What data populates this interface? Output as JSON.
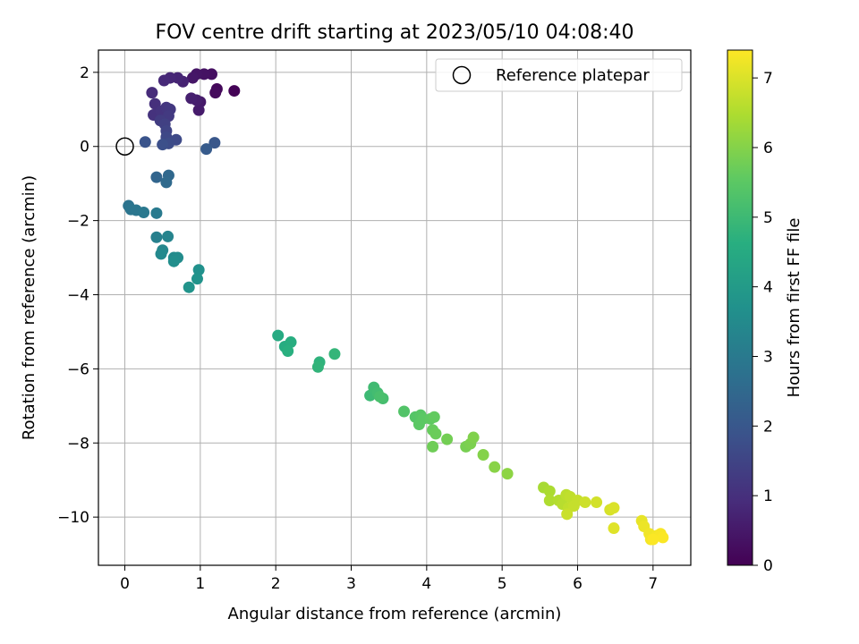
{
  "chart_data": {
    "type": "scatter",
    "title": "FOV centre drift starting at 2023/05/10 04:08:40",
    "xlabel": "Angular distance from reference (arcmin)",
    "ylabel": "Rotation from reference (arcmin)",
    "xlim": [
      -0.35,
      7.5
    ],
    "ylim": [
      -11.3,
      2.6
    ],
    "xticks": [
      0,
      1,
      2,
      3,
      4,
      5,
      6,
      7
    ],
    "yticks": [
      2,
      0,
      -2,
      -4,
      -6,
      -8,
      -10
    ],
    "grid": true,
    "legend": {
      "placement": "top-right",
      "entries": [
        "Reference platepar"
      ]
    },
    "reference": {
      "x": 0,
      "y": 0,
      "marker": "open-circle"
    },
    "colorbar": {
      "label": "Hours from first FF file",
      "range": [
        0,
        7.4
      ],
      "ticks": [
        0,
        1,
        2,
        3,
        4,
        5,
        6,
        7
      ],
      "colormap": "viridis"
    },
    "points": [
      {
        "x": 1.45,
        "y": 1.5,
        "t": 0.05
      },
      {
        "x": 1.22,
        "y": 1.55,
        "t": 0.15
      },
      {
        "x": 1.2,
        "y": 1.45,
        "t": 0.2
      },
      {
        "x": 1.15,
        "y": 1.95,
        "t": 0.3
      },
      {
        "x": 1.05,
        "y": 1.95,
        "t": 0.35
      },
      {
        "x": 0.95,
        "y": 1.95,
        "t": 0.4
      },
      {
        "x": 0.9,
        "y": 1.85,
        "t": 0.45
      },
      {
        "x": 1.0,
        "y": 1.2,
        "t": 0.5
      },
      {
        "x": 0.98,
        "y": 0.98,
        "t": 0.55
      },
      {
        "x": 0.95,
        "y": 1.25,
        "t": 0.6
      },
      {
        "x": 0.88,
        "y": 1.3,
        "t": 0.65
      },
      {
        "x": 0.77,
        "y": 1.75,
        "t": 0.7
      },
      {
        "x": 0.7,
        "y": 1.85,
        "t": 0.75
      },
      {
        "x": 0.6,
        "y": 1.85,
        "t": 0.8
      },
      {
        "x": 0.52,
        "y": 1.78,
        "t": 0.85
      },
      {
        "x": 0.36,
        "y": 1.45,
        "t": 0.9
      },
      {
        "x": 0.4,
        "y": 1.15,
        "t": 1.0
      },
      {
        "x": 0.38,
        "y": 0.85,
        "t": 1.05
      },
      {
        "x": 0.48,
        "y": 0.95,
        "t": 1.1
      },
      {
        "x": 0.55,
        "y": 1.05,
        "t": 1.15
      },
      {
        "x": 0.6,
        "y": 1.0,
        "t": 1.2
      },
      {
        "x": 0.58,
        "y": 0.82,
        "t": 1.25
      },
      {
        "x": 0.47,
        "y": 0.7,
        "t": 1.3
      },
      {
        "x": 0.53,
        "y": 0.6,
        "t": 1.4
      },
      {
        "x": 0.55,
        "y": 0.42,
        "t": 1.5
      },
      {
        "x": 0.55,
        "y": 0.25,
        "t": 1.6
      },
      {
        "x": 0.68,
        "y": 0.18,
        "t": 1.65
      },
      {
        "x": 0.58,
        "y": 0.08,
        "t": 1.7
      },
      {
        "x": 0.5,
        "y": 0.05,
        "t": 1.8
      },
      {
        "x": 0.27,
        "y": 0.12,
        "t": 1.9
      },
      {
        "x": 1.19,
        "y": 0.1,
        "t": 2.0
      },
      {
        "x": 1.08,
        "y": -0.07,
        "t": 2.1
      },
      {
        "x": 0.42,
        "y": -0.83,
        "t": 2.4
      },
      {
        "x": 0.58,
        "y": -0.78,
        "t": 2.5
      },
      {
        "x": 0.55,
        "y": -0.97,
        "t": 2.55
      },
      {
        "x": 0.05,
        "y": -1.6,
        "t": 2.8
      },
      {
        "x": 0.08,
        "y": -1.7,
        "t": 2.85
      },
      {
        "x": 0.15,
        "y": -1.72,
        "t": 2.9
      },
      {
        "x": 0.25,
        "y": -1.78,
        "t": 2.95
      },
      {
        "x": 0.42,
        "y": -1.8,
        "t": 3.0
      },
      {
        "x": 0.42,
        "y": -2.45,
        "t": 3.2
      },
      {
        "x": 0.57,
        "y": -2.43,
        "t": 3.3
      },
      {
        "x": 0.5,
        "y": -2.8,
        "t": 3.4
      },
      {
        "x": 0.48,
        "y": -2.9,
        "t": 3.45
      },
      {
        "x": 0.65,
        "y": -3.0,
        "t": 3.5
      },
      {
        "x": 0.7,
        "y": -3.0,
        "t": 3.55
      },
      {
        "x": 0.65,
        "y": -3.1,
        "t": 3.6
      },
      {
        "x": 0.98,
        "y": -3.33,
        "t": 3.7
      },
      {
        "x": 0.96,
        "y": -3.57,
        "t": 3.75
      },
      {
        "x": 0.85,
        "y": -3.8,
        "t": 3.8
      },
      {
        "x": 2.03,
        "y": -5.1,
        "t": 4.5
      },
      {
        "x": 2.12,
        "y": -5.4,
        "t": 4.55
      },
      {
        "x": 2.2,
        "y": -5.28,
        "t": 4.6
      },
      {
        "x": 2.16,
        "y": -5.52,
        "t": 4.65
      },
      {
        "x": 2.58,
        "y": -5.82,
        "t": 4.75
      },
      {
        "x": 2.56,
        "y": -5.95,
        "t": 4.8
      },
      {
        "x": 2.78,
        "y": -5.6,
        "t": 4.85
      },
      {
        "x": 3.25,
        "y": -6.72,
        "t": 5.0
      },
      {
        "x": 3.3,
        "y": -6.5,
        "t": 5.05
      },
      {
        "x": 3.35,
        "y": -6.65,
        "t": 5.1
      },
      {
        "x": 3.42,
        "y": -6.8,
        "t": 5.15
      },
      {
        "x": 3.38,
        "y": -6.75,
        "t": 5.2
      },
      {
        "x": 3.7,
        "y": -7.15,
        "t": 5.35
      },
      {
        "x": 3.85,
        "y": -7.3,
        "t": 5.4
      },
      {
        "x": 3.92,
        "y": -7.25,
        "t": 5.45
      },
      {
        "x": 3.9,
        "y": -7.5,
        "t": 5.5
      },
      {
        "x": 3.95,
        "y": -7.35,
        "t": 5.5
      },
      {
        "x": 4.05,
        "y": -7.35,
        "t": 5.55
      },
      {
        "x": 4.1,
        "y": -7.3,
        "t": 5.6
      },
      {
        "x": 4.08,
        "y": -7.65,
        "t": 5.65
      },
      {
        "x": 4.12,
        "y": -7.75,
        "t": 5.7
      },
      {
        "x": 4.08,
        "y": -8.1,
        "t": 5.75
      },
      {
        "x": 4.27,
        "y": -7.9,
        "t": 5.8
      },
      {
        "x": 4.52,
        "y": -8.1,
        "t": 5.85
      },
      {
        "x": 4.58,
        "y": -8.02,
        "t": 5.9
      },
      {
        "x": 4.62,
        "y": -7.85,
        "t": 5.95
      },
      {
        "x": 4.75,
        "y": -8.32,
        "t": 6.0
      },
      {
        "x": 4.9,
        "y": -8.65,
        "t": 6.05
      },
      {
        "x": 5.07,
        "y": -8.83,
        "t": 6.1
      },
      {
        "x": 5.55,
        "y": -9.2,
        "t": 6.4
      },
      {
        "x": 5.63,
        "y": -9.3,
        "t": 6.45
      },
      {
        "x": 5.63,
        "y": -9.55,
        "t": 6.5
      },
      {
        "x": 5.75,
        "y": -9.55,
        "t": 6.55
      },
      {
        "x": 5.8,
        "y": -9.65,
        "t": 6.6
      },
      {
        "x": 5.85,
        "y": -9.4,
        "t": 6.65
      },
      {
        "x": 5.9,
        "y": -9.45,
        "t": 6.7
      },
      {
        "x": 5.88,
        "y": -9.75,
        "t": 6.7
      },
      {
        "x": 5.95,
        "y": -9.7,
        "t": 6.75
      },
      {
        "x": 6.0,
        "y": -9.55,
        "t": 6.75
      },
      {
        "x": 5.86,
        "y": -9.92,
        "t": 6.8
      },
      {
        "x": 6.1,
        "y": -9.6,
        "t": 6.85
      },
      {
        "x": 6.25,
        "y": -9.6,
        "t": 6.9
      },
      {
        "x": 6.43,
        "y": -9.8,
        "t": 6.95
      },
      {
        "x": 6.48,
        "y": -9.75,
        "t": 7.0
      },
      {
        "x": 6.48,
        "y": -10.3,
        "t": 7.05
      },
      {
        "x": 6.85,
        "y": -10.1,
        "t": 7.15
      },
      {
        "x": 6.88,
        "y": -10.25,
        "t": 7.2
      },
      {
        "x": 6.95,
        "y": -10.45,
        "t": 7.25
      },
      {
        "x": 6.97,
        "y": -10.6,
        "t": 7.28
      },
      {
        "x": 7.05,
        "y": -10.5,
        "t": 7.3
      },
      {
        "x": 7.1,
        "y": -10.45,
        "t": 7.33
      },
      {
        "x": 7.13,
        "y": -10.55,
        "t": 7.36
      },
      {
        "x": 7.0,
        "y": -10.6,
        "t": 7.38
      }
    ]
  }
}
